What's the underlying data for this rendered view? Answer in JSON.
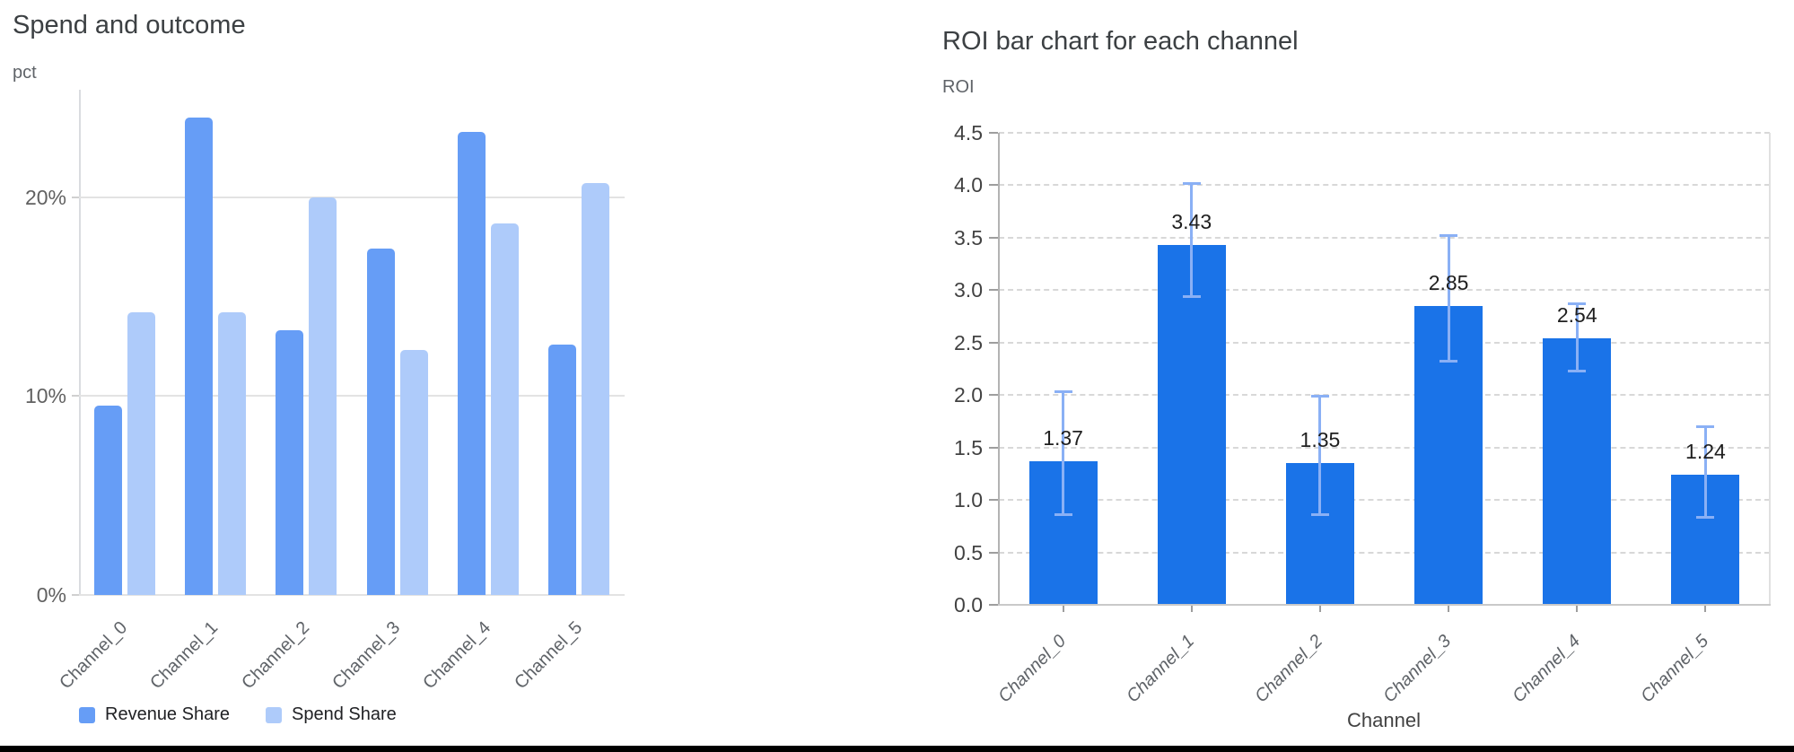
{
  "window": {
    "background": "#ffffff",
    "bottom_bar_color": "#000000"
  },
  "left_chart": {
    "title": "Spend and outcome",
    "unit_label": "pct"
  },
  "right_chart": {
    "title": "ROI bar chart for each channel",
    "unit_label": "ROI",
    "x_axis_title": "Channel"
  },
  "chart_data": [
    {
      "type": "bar",
      "title": "Spend and outcome",
      "ylabel": "pct",
      "xlabel": "",
      "categories": [
        "Channel_0",
        "Channel_1",
        "Channel_2",
        "Channel_3",
        "Channel_4",
        "Channel_5"
      ],
      "series": [
        {
          "name": "Revenue Share",
          "color": "#669df6",
          "values": [
            9.5,
            24.0,
            13.3,
            17.4,
            23.3,
            12.6
          ]
        },
        {
          "name": "Spend Share",
          "color": "#aecbfa",
          "values": [
            14.2,
            14.2,
            20.0,
            12.3,
            18.7,
            20.7
          ]
        }
      ],
      "y_ticks": [
        {
          "v": 0,
          "label": "0%"
        },
        {
          "v": 10,
          "label": "10%"
        },
        {
          "v": 20,
          "label": "20%"
        }
      ],
      "ylim": [
        0,
        25.4
      ],
      "grid": "horizontal-solid",
      "legend_position": "bottom-left",
      "value_format": "percent"
    },
    {
      "type": "bar",
      "title": "ROI bar chart for each channel",
      "ylabel": "ROI",
      "xlabel": "Channel",
      "categories": [
        "Channel_0",
        "Channel_1",
        "Channel_2",
        "Channel_3",
        "Channel_4",
        "Channel_5"
      ],
      "values": [
        1.37,
        3.43,
        1.35,
        2.85,
        2.54,
        1.24
      ],
      "bar_labels": [
        "1.37",
        "3.43",
        "1.35",
        "2.85",
        "2.54",
        "1.24"
      ],
      "error_low": [
        0.86,
        2.94,
        0.86,
        2.32,
        2.23,
        0.83
      ],
      "error_high": [
        2.03,
        4.02,
        1.99,
        3.52,
        2.87,
        1.7
      ],
      "y_ticks": [
        {
          "v": 0.0,
          "label": "0.0"
        },
        {
          "v": 0.5,
          "label": "0.5"
        },
        {
          "v": 1.0,
          "label": "1.0"
        },
        {
          "v": 1.5,
          "label": "1.5"
        },
        {
          "v": 2.0,
          "label": "2.0"
        },
        {
          "v": 2.5,
          "label": "2.5"
        },
        {
          "v": 3.0,
          "label": "3.0"
        },
        {
          "v": 3.5,
          "label": "3.5"
        },
        {
          "v": 4.0,
          "label": "4.0"
        },
        {
          "v": 4.5,
          "label": "4.5"
        }
      ],
      "ylim": [
        0,
        4.5
      ],
      "grid": "horizontal-dashed",
      "bar_color": "#1a73e8",
      "error_bar_color": "#8ab0f5",
      "legend_position": "none"
    }
  ]
}
